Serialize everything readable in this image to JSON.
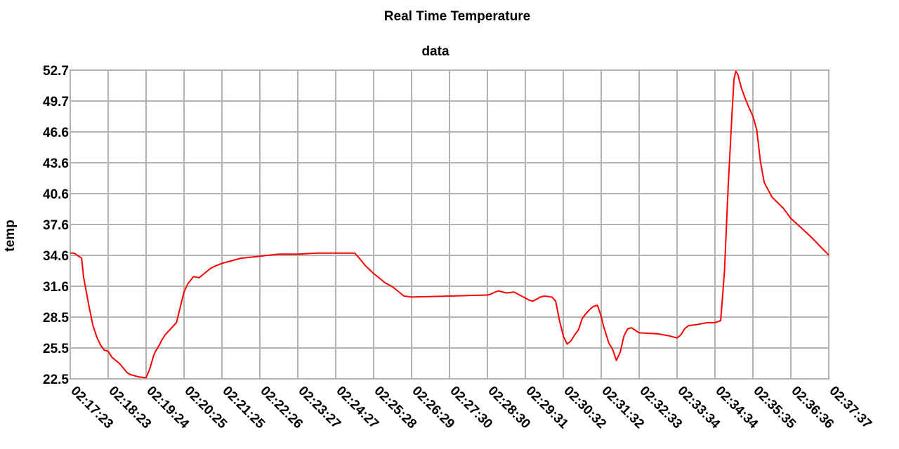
{
  "chart_data": {
    "type": "line",
    "title": "Real Time Temperature",
    "subtitle": "data",
    "xlabel": "",
    "ylabel": "temp",
    "ylim": [
      22.5,
      52.7
    ],
    "y_ticks": [
      "22.5",
      "25.5",
      "28.5",
      "31.6",
      "34.6",
      "37.6",
      "40.6",
      "43.6",
      "46.6",
      "49.7",
      "52.7"
    ],
    "x_ticks": [
      "02:17:23",
      "02:18:23",
      "02:19:24",
      "02:20:25",
      "02:21:25",
      "02:22:26",
      "02:23:27",
      "02:24:27",
      "02:25:28",
      "02:26:29",
      "02:27:30",
      "02:28:30",
      "02:29:31",
      "02:30:32",
      "02:31:32",
      "02:32:33",
      "02:33:34",
      "02:34:34",
      "02:35:35",
      "02:36:36",
      "02:37:37"
    ],
    "grid": true,
    "legend": "none",
    "series_color": "#ff0000",
    "series": [
      {
        "x": [
          0,
          0.1,
          0.3,
          0.35,
          0.5,
          0.6,
          0.7,
          0.8,
          0.9,
          1.0,
          1.1,
          1.3,
          1.5,
          1.6,
          1.8,
          2.0,
          2.1,
          2.2,
          2.25,
          2.35,
          2.4,
          2.5,
          2.7,
          2.8,
          3.0,
          3.1,
          3.25,
          3.4,
          3.5,
          3.6,
          3.7,
          3.8,
          4.0,
          4.2,
          4.5,
          5.0,
          5.5,
          6.0,
          6.5,
          7.0,
          7.5,
          7.6,
          7.8,
          8.0,
          8.3,
          8.5,
          8.8,
          9.0,
          10.0,
          11.0,
          11.1,
          11.2,
          11.3,
          11.5,
          11.7,
          12.0,
          12.1,
          12.2,
          12.4,
          12.5,
          12.7,
          12.8,
          12.9,
          13.0,
          13.1,
          13.2,
          13.3,
          13.4,
          13.5,
          13.6,
          13.7,
          13.8,
          13.9,
          14.0,
          14.05,
          14.2,
          14.3,
          14.4,
          14.5,
          14.6,
          14.7,
          14.8,
          15.0,
          15.5,
          15.8,
          16.0,
          16.1,
          16.2,
          16.3,
          16.5,
          16.8,
          17.0,
          17.15,
          17.25,
          17.35,
          17.45,
          17.5,
          17.55,
          17.6,
          17.7,
          17.8,
          17.9,
          18.0,
          18.1,
          18.2,
          18.3,
          18.5,
          18.8,
          19.0,
          19.5,
          20.0
        ],
        "y": [
          34.8,
          34.8,
          34.3,
          32.5,
          29.5,
          27.7,
          26.6,
          25.8,
          25.3,
          25.2,
          24.6,
          24.0,
          23.1,
          22.9,
          22.7,
          22.6,
          23.5,
          24.8,
          25.2,
          25.8,
          26.2,
          26.8,
          27.6,
          28.0,
          31.0,
          31.8,
          32.5,
          32.4,
          32.7,
          33.0,
          33.3,
          33.5,
          33.8,
          34.0,
          34.3,
          34.5,
          34.7,
          34.7,
          34.8,
          34.8,
          34.8,
          34.4,
          33.5,
          32.8,
          31.9,
          31.5,
          30.6,
          30.5,
          30.6,
          30.7,
          30.8,
          31.0,
          31.1,
          30.9,
          31.0,
          30.4,
          30.2,
          30.1,
          30.5,
          30.6,
          30.5,
          30.1,
          28.2,
          26.7,
          25.9,
          26.2,
          26.8,
          27.3,
          28.4,
          28.9,
          29.3,
          29.6,
          29.7,
          28.6,
          27.8,
          26.0,
          25.4,
          24.3,
          25.1,
          26.7,
          27.4,
          27.5,
          27.0,
          26.9,
          26.7,
          26.5,
          26.8,
          27.4,
          27.7,
          27.8,
          28.0,
          28.0,
          28.2,
          33.0,
          41.5,
          48.5,
          51.8,
          52.6,
          52.3,
          50.9,
          49.9,
          49.0,
          48.2,
          46.9,
          43.7,
          41.7,
          40.3,
          39.2,
          38.2,
          36.5,
          34.6
        ]
      }
    ]
  }
}
